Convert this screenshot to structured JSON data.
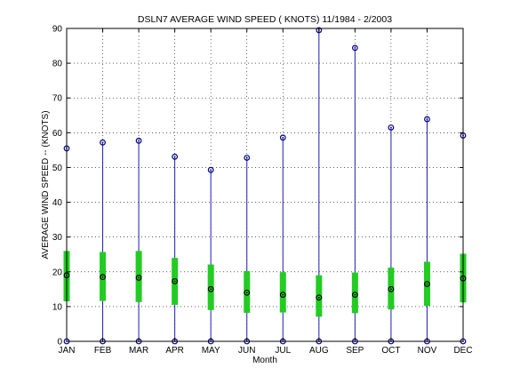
{
  "chart_data": {
    "type": "box",
    "title": "DSLN7  AVERAGE WIND SPEED ( KNOTS) 11/1984 - 2/2003",
    "xlabel": "Month",
    "ylabel": "AVERAGE WIND SPEED -- (KNOTS)",
    "ylim": [
      0,
      90
    ],
    "yticks": [
      0,
      10,
      20,
      30,
      40,
      50,
      60,
      70,
      80,
      90
    ],
    "grid": true,
    "categories": [
      "JAN",
      "FEB",
      "MAR",
      "APR",
      "MAY",
      "JUN",
      "JUL",
      "AUG",
      "SEP",
      "OCT",
      "NOV",
      "DEC"
    ],
    "min": [
      0,
      0,
      0,
      0,
      0,
      0,
      0,
      0,
      0,
      0,
      0,
      0
    ],
    "max": [
      55.5,
      57.2,
      57.7,
      53.1,
      49.3,
      52.8,
      58.6,
      89.5,
      84.4,
      61.5,
      63.9,
      59.2
    ],
    "q_low": [
      11.5,
      11.6,
      11.3,
      10.5,
      9.0,
      8.2,
      8.3,
      7.1,
      8.1,
      9.2,
      10.2,
      11.2
    ],
    "q_high": [
      26.0,
      25.7,
      26.0,
      24.0,
      22.1,
      20.2,
      19.9,
      19.0,
      19.8,
      21.2,
      22.9,
      25.2
    ],
    "mean": [
      19.0,
      18.5,
      18.3,
      17.3,
      15.0,
      14.0,
      13.4,
      12.6,
      13.4,
      15.0,
      16.5,
      18.1
    ],
    "colors": {
      "whisker": "#1f1fb0",
      "box": "#22cc22",
      "marker": "#000080"
    }
  }
}
